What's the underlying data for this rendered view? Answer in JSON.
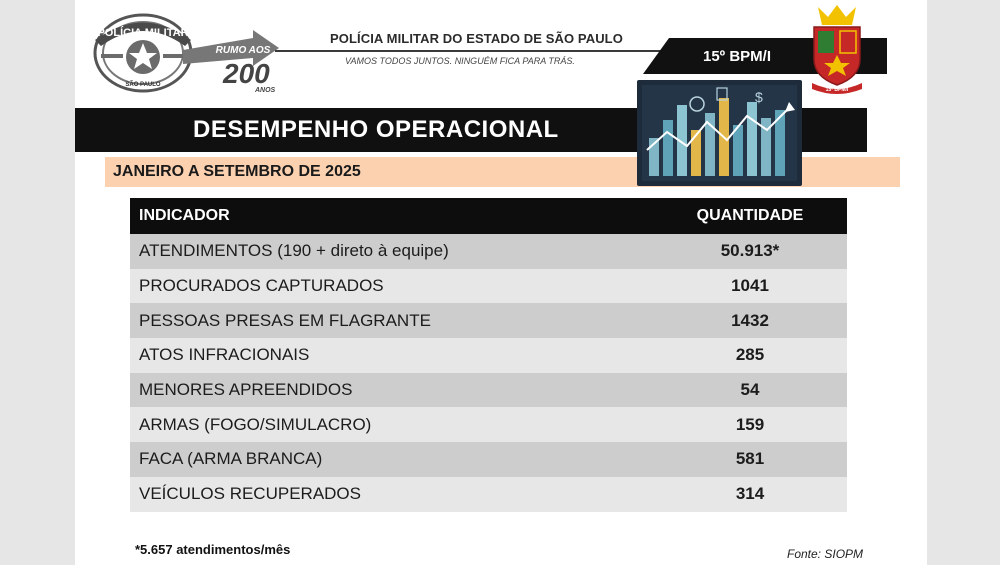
{
  "header": {
    "logo_text_top": "POLÍCIA MILITAR",
    "logo_text_bottom": "SÃO PAULO",
    "rumo_text": "RUMO AOS",
    "rumo_number": "200",
    "rumo_anos": "ANOS",
    "title": "POLÍCIA MILITAR DO ESTADO DE SÃO PAULO",
    "subtitle": "VAMOS TODOS JUNTOS. NINGUÉM FICA PARA TRÁS.",
    "unit": "15º BPM/I",
    "crest_ribbon": "15º BPM/I"
  },
  "report": {
    "title": "DESEMPENHO OPERACIONAL",
    "period": "JANEIRO A SETEMBRO DE 2025"
  },
  "table": {
    "headers": {
      "indicator": "INDICADOR",
      "quantity": "QUANTIDADE"
    },
    "rows": [
      {
        "indicator": "ATENDIMENTOS (190 + direto à equipe)",
        "quantity": "50.913*"
      },
      {
        "indicator": "PROCURADOS CAPTURADOS",
        "quantity": "1041"
      },
      {
        "indicator": "PESSOAS PRESAS EM FLAGRANTE",
        "quantity": "1432"
      },
      {
        "indicator": "ATOS INFRACIONAIS",
        "quantity": "285"
      },
      {
        "indicator": "MENORES APREENDIDOS",
        "quantity": "54"
      },
      {
        "indicator": "ARMAS (FOGO/SIMULACRO)",
        "quantity": "159"
      },
      {
        "indicator": "FACA (ARMA BRANCA)",
        "quantity": "581"
      },
      {
        "indicator": "VEÍCULOS RECUPERADOS",
        "quantity": "314"
      }
    ]
  },
  "footer": {
    "note": "*5.657 atendimentos/mês",
    "source": "Fonte: SIOPM"
  },
  "colors": {
    "title_bar": "#101010",
    "period_bar": "#fbd1b0",
    "row_dark": "#cdcdcd",
    "row_light": "#e7e7e7"
  }
}
